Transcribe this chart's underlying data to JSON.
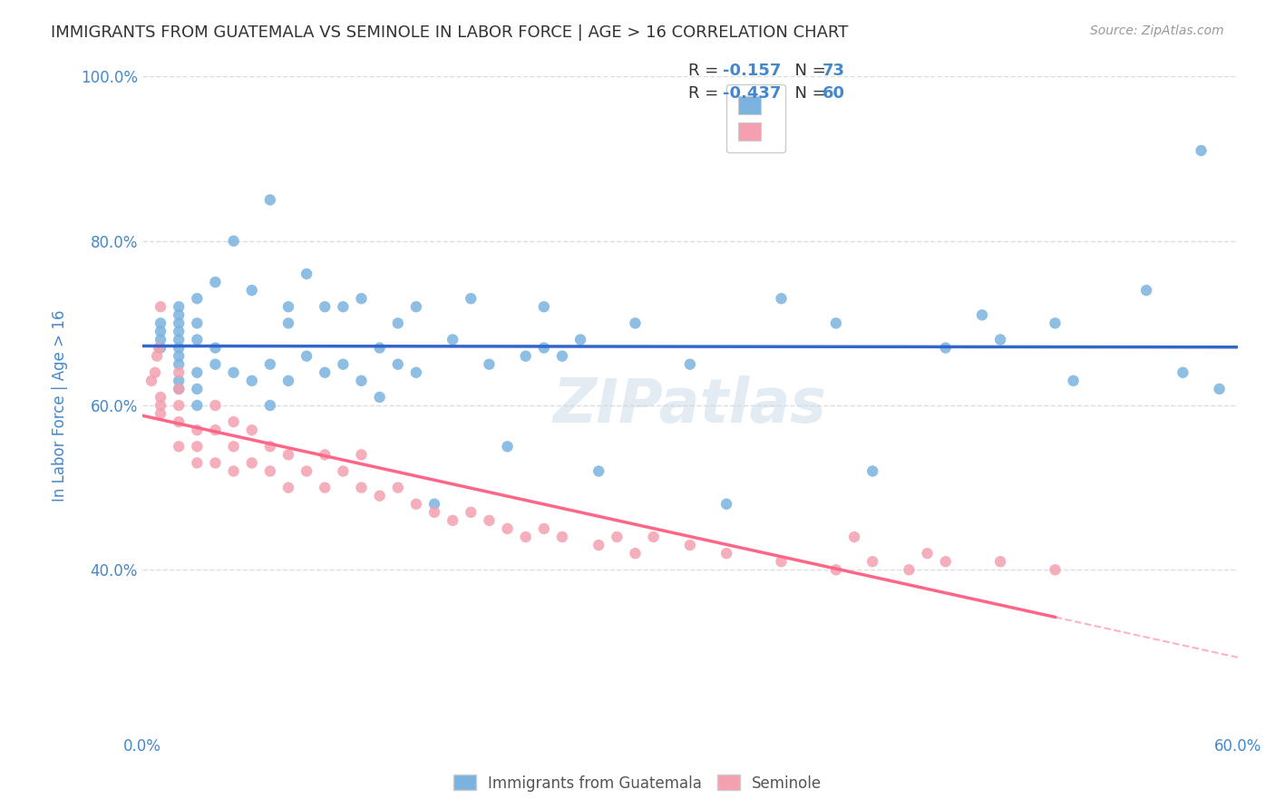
{
  "title": "IMMIGRANTS FROM GUATEMALA VS SEMINOLE IN LABOR FORCE | AGE > 16 CORRELATION CHART",
  "source": "Source: ZipAtlas.com",
  "xlabel_bottom": "",
  "ylabel": "In Labor Force | Age > 16",
  "x_min": 0.0,
  "x_max": 0.6,
  "y_min": 0.2,
  "y_max": 1.0,
  "x_ticks": [
    0.0,
    0.1,
    0.2,
    0.3,
    0.4,
    0.5,
    0.6
  ],
  "x_tick_labels": [
    "0.0%",
    "",
    "",
    "",
    "",
    "",
    "60.0%"
  ],
  "y_ticks": [
    0.4,
    0.6,
    0.8,
    1.0
  ],
  "y_tick_labels": [
    "40.0%",
    "60.0%",
    "80.0%",
    "100.0%"
  ],
  "blue_R": -0.157,
  "blue_N": 73,
  "pink_R": -0.437,
  "pink_N": 60,
  "blue_color": "#7ab3e0",
  "pink_color": "#f4a0b0",
  "blue_line_color": "#3366cc",
  "pink_line_color": "#ff6688",
  "blue_scatter_x": [
    0.01,
    0.01,
    0.01,
    0.01,
    0.02,
    0.02,
    0.02,
    0.02,
    0.02,
    0.02,
    0.02,
    0.02,
    0.02,
    0.02,
    0.03,
    0.03,
    0.03,
    0.03,
    0.03,
    0.03,
    0.04,
    0.04,
    0.04,
    0.05,
    0.05,
    0.06,
    0.06,
    0.07,
    0.07,
    0.07,
    0.08,
    0.08,
    0.08,
    0.09,
    0.09,
    0.1,
    0.1,
    0.11,
    0.11,
    0.12,
    0.12,
    0.13,
    0.13,
    0.14,
    0.14,
    0.15,
    0.15,
    0.16,
    0.17,
    0.18,
    0.19,
    0.2,
    0.21,
    0.22,
    0.22,
    0.23,
    0.24,
    0.25,
    0.27,
    0.3,
    0.32,
    0.35,
    0.38,
    0.4,
    0.44,
    0.46,
    0.47,
    0.5,
    0.51,
    0.55,
    0.57,
    0.58,
    0.59
  ],
  "blue_scatter_y": [
    0.67,
    0.68,
    0.69,
    0.7,
    0.62,
    0.63,
    0.65,
    0.66,
    0.67,
    0.68,
    0.69,
    0.7,
    0.71,
    0.72,
    0.6,
    0.62,
    0.64,
    0.68,
    0.7,
    0.73,
    0.65,
    0.67,
    0.75,
    0.64,
    0.8,
    0.63,
    0.74,
    0.6,
    0.65,
    0.85,
    0.63,
    0.7,
    0.72,
    0.66,
    0.76,
    0.64,
    0.72,
    0.65,
    0.72,
    0.63,
    0.73,
    0.61,
    0.67,
    0.65,
    0.7,
    0.64,
    0.72,
    0.48,
    0.68,
    0.73,
    0.65,
    0.55,
    0.66,
    0.67,
    0.72,
    0.66,
    0.68,
    0.52,
    0.7,
    0.65,
    0.48,
    0.73,
    0.7,
    0.52,
    0.67,
    0.71,
    0.68,
    0.7,
    0.63,
    0.74,
    0.64,
    0.91,
    0.62
  ],
  "pink_scatter_x": [
    0.005,
    0.007,
    0.008,
    0.009,
    0.01,
    0.01,
    0.01,
    0.01,
    0.02,
    0.02,
    0.02,
    0.02,
    0.02,
    0.03,
    0.03,
    0.03,
    0.04,
    0.04,
    0.04,
    0.05,
    0.05,
    0.05,
    0.06,
    0.06,
    0.07,
    0.07,
    0.08,
    0.08,
    0.09,
    0.1,
    0.1,
    0.11,
    0.12,
    0.12,
    0.13,
    0.14,
    0.15,
    0.16,
    0.17,
    0.18,
    0.19,
    0.2,
    0.21,
    0.22,
    0.23,
    0.25,
    0.26,
    0.27,
    0.28,
    0.3,
    0.32,
    0.35,
    0.38,
    0.39,
    0.4,
    0.42,
    0.43,
    0.44,
    0.47,
    0.5
  ],
  "pink_scatter_y": [
    0.63,
    0.64,
    0.66,
    0.67,
    0.59,
    0.6,
    0.61,
    0.72,
    0.55,
    0.58,
    0.6,
    0.62,
    0.64,
    0.53,
    0.55,
    0.57,
    0.53,
    0.57,
    0.6,
    0.52,
    0.55,
    0.58,
    0.53,
    0.57,
    0.52,
    0.55,
    0.5,
    0.54,
    0.52,
    0.5,
    0.54,
    0.52,
    0.5,
    0.54,
    0.49,
    0.5,
    0.48,
    0.47,
    0.46,
    0.47,
    0.46,
    0.45,
    0.44,
    0.45,
    0.44,
    0.43,
    0.44,
    0.42,
    0.44,
    0.43,
    0.42,
    0.41,
    0.4,
    0.44,
    0.41,
    0.4,
    0.42,
    0.41,
    0.41,
    0.4
  ],
  "background_color": "#ffffff",
  "grid_color": "#dddddd",
  "title_color": "#333333",
  "axis_label_color": "#4488cc",
  "tick_color": "#4488cc",
  "watermark_text": "ZIPatlas",
  "legend_label1": "Immigrants from Guatemala",
  "legend_label2": "Seminole"
}
